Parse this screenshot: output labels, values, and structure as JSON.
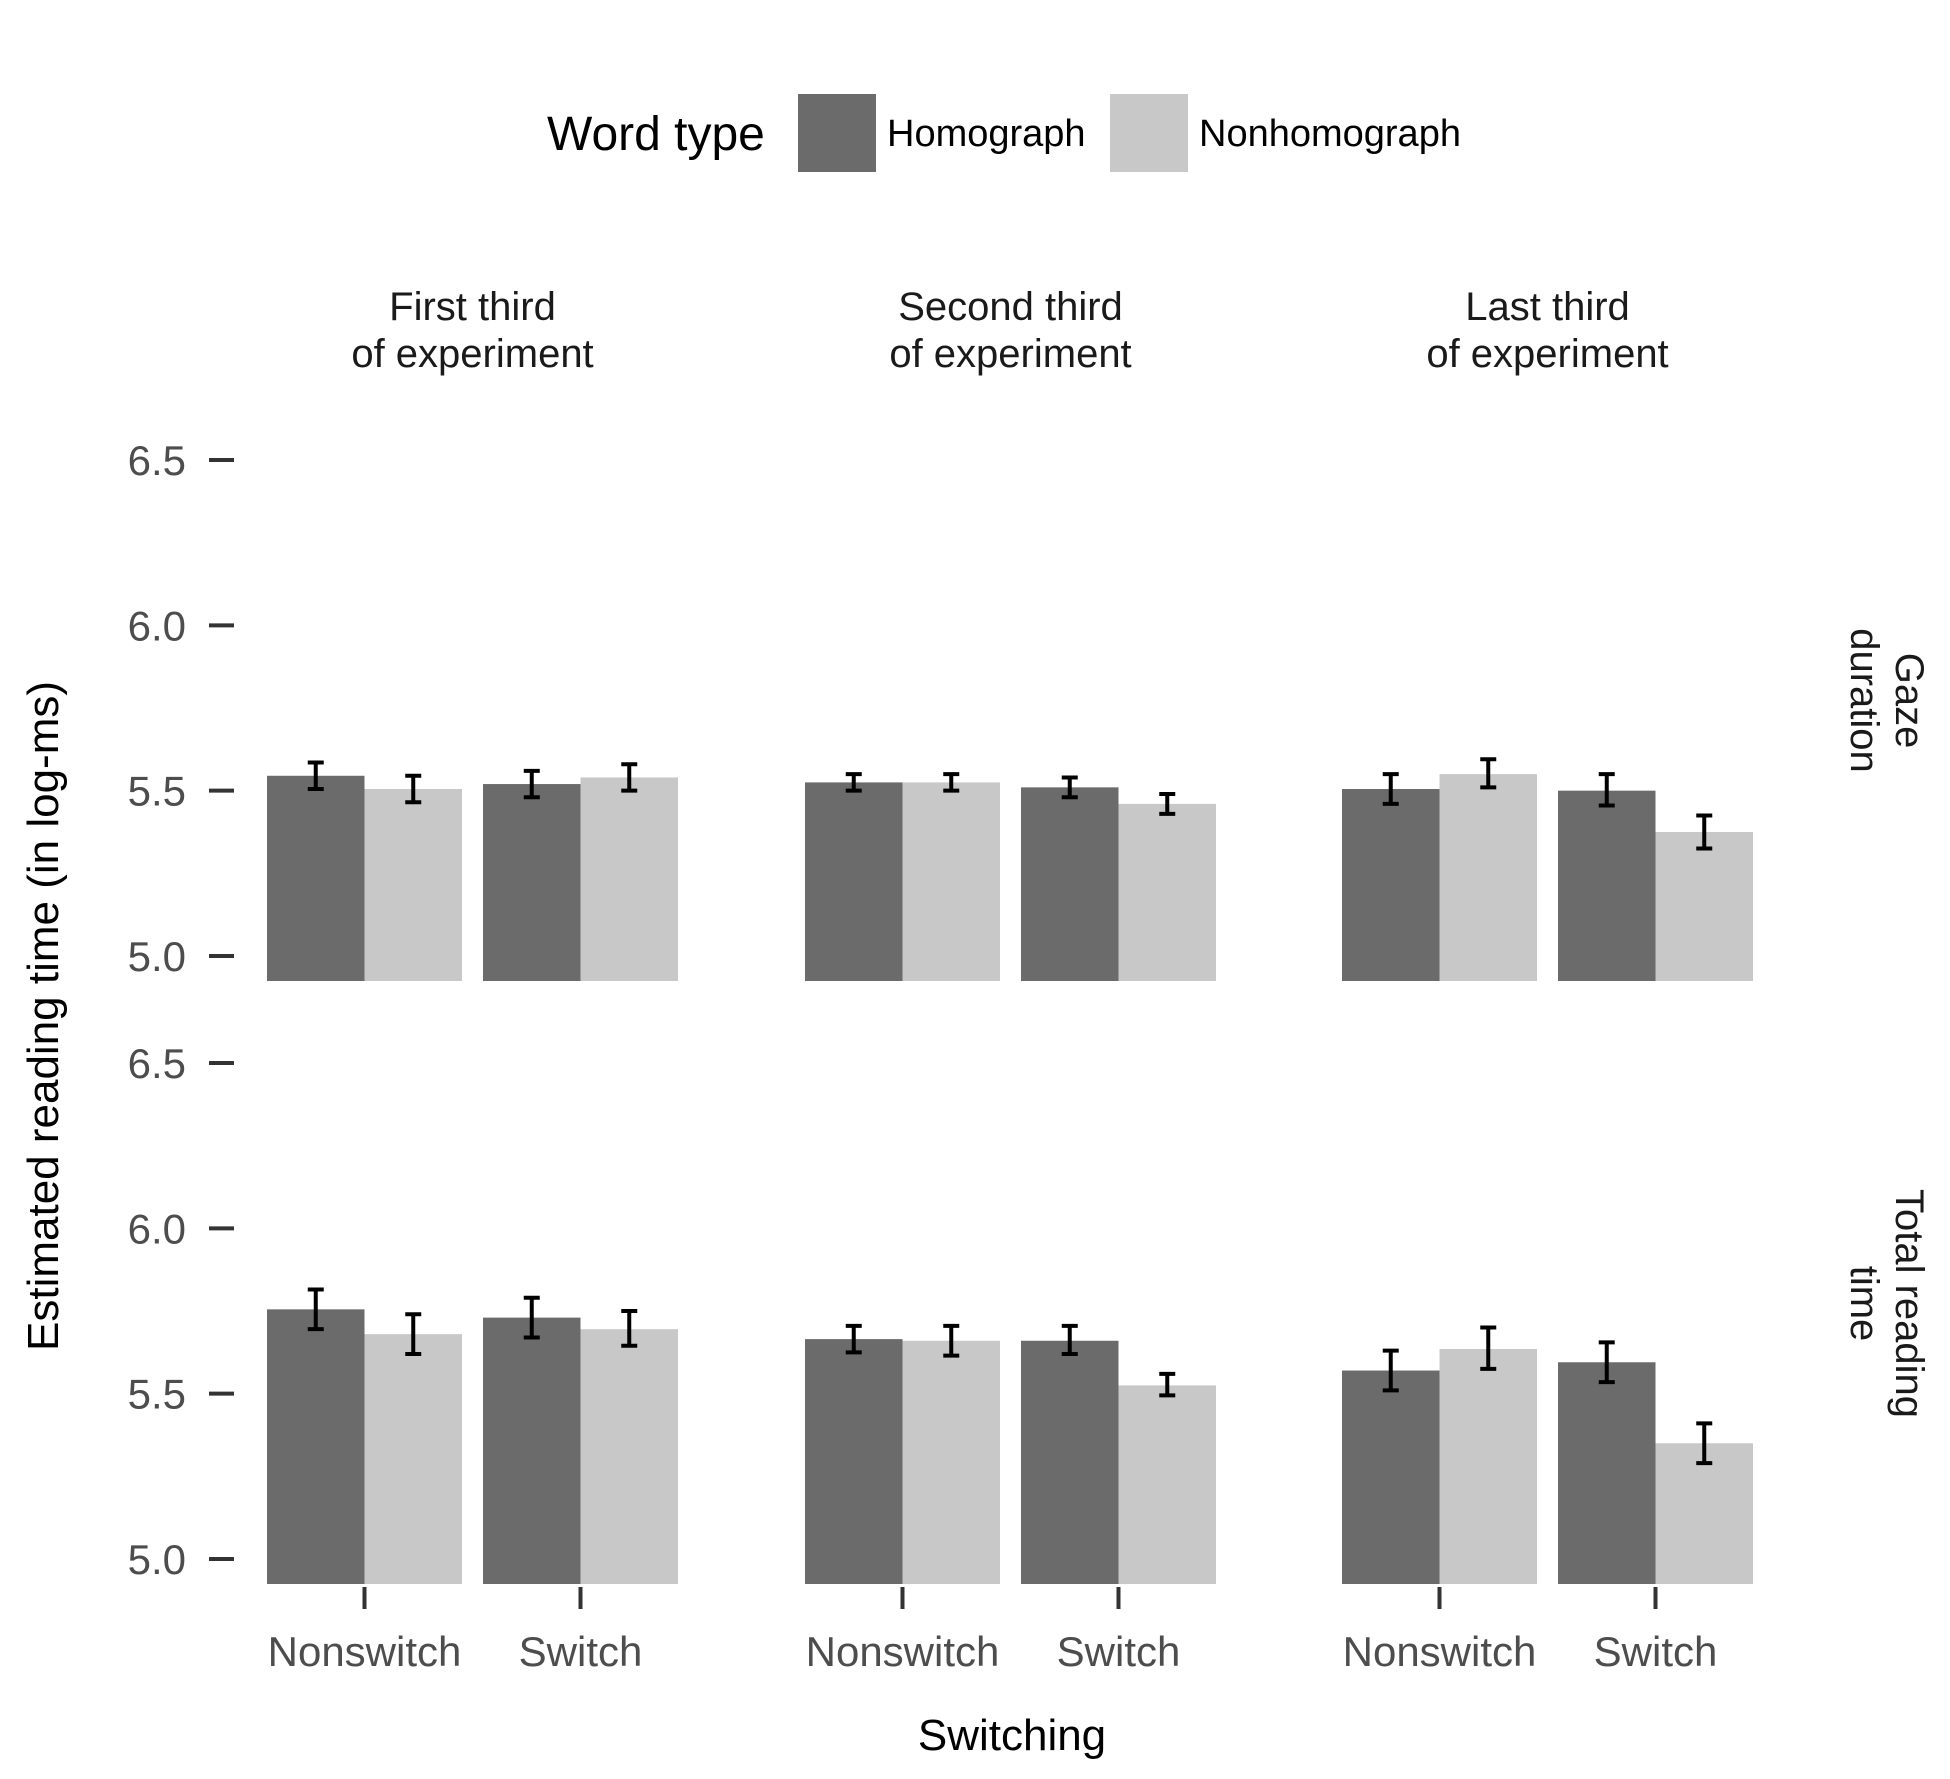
{
  "chart_data": {
    "type": "bar",
    "legend": {
      "title": "Word type",
      "position": "top",
      "entries": [
        {
          "label": "Homograph",
          "color": "#6b6b6b"
        },
        {
          "label": "Nonhomograph",
          "color": "#c8c8c8"
        }
      ]
    },
    "xlabel": "Switching",
    "ylabel": "Estimated reading time (in log-ms)",
    "categories": [
      "Nonswitch",
      "Switch"
    ],
    "column_facets": [
      "First third\nof experiment",
      "Second third\nof experiment",
      "Last third\nof experiment"
    ],
    "row_facets": [
      "Gaze\nduration",
      "Total reading\ntime"
    ],
    "y_ticks": [
      "5.0",
      "5.5",
      "6.0",
      "6.5"
    ],
    "y_tick_values": [
      5.0,
      5.5,
      6.0,
      6.5
    ],
    "ylim": [
      4.93,
      6.56
    ],
    "grid": false,
    "panels": [
      {
        "row": 0,
        "col": 0,
        "values": {
          "Homograph": [
            5.545,
            5.52
          ],
          "Nonhomograph": [
            5.505,
            5.54
          ]
        },
        "errors": {
          "Homograph": [
            [
              5.505,
              5.585
            ],
            [
              5.48,
              5.56
            ]
          ],
          "Nonhomograph": [
            [
              5.465,
              5.545
            ],
            [
              5.5,
              5.58
            ]
          ]
        }
      },
      {
        "row": 0,
        "col": 1,
        "values": {
          "Homograph": [
            5.525,
            5.51
          ],
          "Nonhomograph": [
            5.525,
            5.46
          ]
        },
        "errors": {
          "Homograph": [
            [
              5.5,
              5.55
            ],
            [
              5.48,
              5.54
            ]
          ],
          "Nonhomograph": [
            [
              5.5,
              5.55
            ],
            [
              5.43,
              5.49
            ]
          ]
        }
      },
      {
        "row": 0,
        "col": 2,
        "values": {
          "Homograph": [
            5.505,
            5.5
          ],
          "Nonhomograph": [
            5.55,
            5.375
          ]
        },
        "errors": {
          "Homograph": [
            [
              5.46,
              5.55
            ],
            [
              5.455,
              5.55
            ]
          ],
          "Nonhomograph": [
            [
              5.51,
              5.595
            ],
            [
              5.325,
              5.425
            ]
          ]
        }
      },
      {
        "row": 1,
        "col": 0,
        "values": {
          "Homograph": [
            5.755,
            5.73
          ],
          "Nonhomograph": [
            5.68,
            5.695
          ]
        },
        "errors": {
          "Homograph": [
            [
              5.695,
              5.815
            ],
            [
              5.67,
              5.79
            ]
          ],
          "Nonhomograph": [
            [
              5.62,
              5.74
            ],
            [
              5.645,
              5.75
            ]
          ]
        }
      },
      {
        "row": 1,
        "col": 1,
        "values": {
          "Homograph": [
            5.665,
            5.66
          ],
          "Nonhomograph": [
            5.66,
            5.525
          ]
        },
        "errors": {
          "Homograph": [
            [
              5.625,
              5.705
            ],
            [
              5.62,
              5.705
            ]
          ],
          "Nonhomograph": [
            [
              5.615,
              5.705
            ],
            [
              5.495,
              5.56
            ]
          ]
        }
      },
      {
        "row": 1,
        "col": 2,
        "values": {
          "Homograph": [
            5.57,
            5.595
          ],
          "Nonhomograph": [
            5.635,
            5.35
          ]
        },
        "errors": {
          "Homograph": [
            [
              5.51,
              5.63
            ],
            [
              5.535,
              5.655
            ]
          ],
          "Nonhomograph": [
            [
              5.575,
              5.7
            ],
            [
              5.29,
              5.41
            ]
          ]
        }
      }
    ]
  }
}
